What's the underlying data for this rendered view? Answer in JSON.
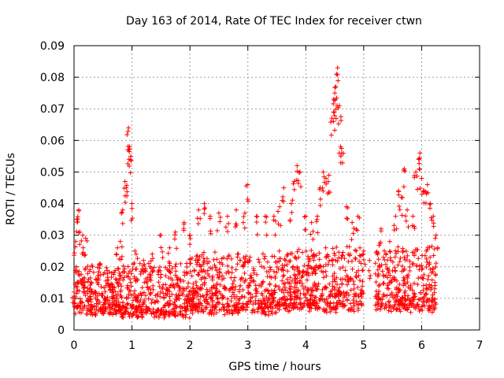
{
  "chart_data": {
    "type": "scatter",
    "title": "Day 163 of 2014, Rate Of TEC Index for receiver ctwn",
    "xlabel": "GPS time / hours",
    "ylabel": "ROTI / TECUs",
    "xlim": [
      0,
      7
    ],
    "ylim": [
      0,
      0.09
    ],
    "xticks": [
      "0",
      "1",
      "2",
      "3",
      "4",
      "5",
      "6",
      "7"
    ],
    "yticks": [
      "0",
      "0.01",
      "0.02",
      "0.03",
      "0.04",
      "0.05",
      "0.06",
      "0.07",
      "0.08",
      "0.09"
    ],
    "grid": true,
    "marker": "plus",
    "color": "#ff0000",
    "series": [
      {
        "name": "ROTI",
        "points": [
          [
            0.0,
            0.012
          ],
          [
            0.03,
            0.028
          ],
          [
            0.05,
            0.035
          ],
          [
            0.08,
            0.038
          ],
          [
            0.1,
            0.031
          ],
          [
            0.15,
            0.03
          ],
          [
            0.2,
            0.029
          ],
          [
            0.25,
            0.016
          ],
          [
            0.3,
            0.012
          ],
          [
            0.45,
            0.021
          ],
          [
            0.55,
            0.014
          ],
          [
            0.65,
            0.018
          ],
          [
            0.75,
            0.026
          ],
          [
            0.8,
            0.028
          ],
          [
            0.84,
            0.038
          ],
          [
            0.88,
            0.047
          ],
          [
            0.9,
            0.045
          ],
          [
            0.93,
            0.057
          ],
          [
            0.94,
            0.064
          ],
          [
            0.96,
            0.058
          ],
          [
            0.98,
            0.055
          ],
          [
            1.0,
            0.04
          ],
          [
            1.05,
            0.025
          ],
          [
            1.2,
            0.022
          ],
          [
            1.35,
            0.024
          ],
          [
            1.5,
            0.03
          ],
          [
            1.65,
            0.026
          ],
          [
            1.75,
            0.031
          ],
          [
            1.9,
            0.034
          ],
          [
            2.0,
            0.03
          ],
          [
            2.15,
            0.038
          ],
          [
            2.25,
            0.04
          ],
          [
            2.35,
            0.036
          ],
          [
            2.5,
            0.037
          ],
          [
            2.65,
            0.036
          ],
          [
            2.8,
            0.038
          ],
          [
            2.95,
            0.037
          ],
          [
            3.0,
            0.046
          ],
          [
            3.15,
            0.036
          ],
          [
            3.3,
            0.036
          ],
          [
            3.45,
            0.036
          ],
          [
            3.55,
            0.039
          ],
          [
            3.62,
            0.045
          ],
          [
            3.75,
            0.04
          ],
          [
            3.8,
            0.047
          ],
          [
            3.85,
            0.052
          ],
          [
            3.9,
            0.05
          ],
          [
            4.0,
            0.036
          ],
          [
            4.1,
            0.034
          ],
          [
            4.2,
            0.036
          ],
          [
            4.25,
            0.045
          ],
          [
            4.3,
            0.05
          ],
          [
            4.35,
            0.048
          ],
          [
            4.4,
            0.049
          ],
          [
            4.45,
            0.067
          ],
          [
            4.48,
            0.069
          ],
          [
            4.5,
            0.075
          ],
          [
            4.52,
            0.077
          ],
          [
            4.54,
            0.071
          ],
          [
            4.55,
            0.083
          ],
          [
            4.58,
            0.071
          ],
          [
            4.6,
            0.058
          ],
          [
            4.62,
            0.056
          ],
          [
            4.7,
            0.039
          ],
          [
            4.8,
            0.034
          ],
          [
            4.9,
            0.036
          ],
          [
            5.0,
            0.025
          ],
          [
            5.1,
            0.022
          ],
          [
            5.3,
            0.032
          ],
          [
            5.45,
            0.028
          ],
          [
            5.55,
            0.036
          ],
          [
            5.6,
            0.044
          ],
          [
            5.65,
            0.042
          ],
          [
            5.7,
            0.051
          ],
          [
            5.75,
            0.038
          ],
          [
            5.85,
            0.036
          ],
          [
            5.9,
            0.05
          ],
          [
            5.95,
            0.054
          ],
          [
            5.97,
            0.056
          ],
          [
            6.0,
            0.048
          ],
          [
            6.05,
            0.044
          ],
          [
            6.1,
            0.046
          ],
          [
            6.15,
            0.04
          ],
          [
            6.2,
            0.036
          ],
          [
            6.25,
            0.03
          ]
        ]
      }
    ],
    "density_bands": [
      {
        "x": [
          0.0,
          0.8
        ],
        "low": 0.006,
        "high": 0.02
      },
      {
        "x": [
          0.8,
          2.0
        ],
        "low": 0.005,
        "high": 0.022
      },
      {
        "x": [
          2.0,
          3.5
        ],
        "low": 0.006,
        "high": 0.024
      },
      {
        "x": [
          3.5,
          5.0
        ],
        "low": 0.007,
        "high": 0.026
      },
      {
        "x": [
          5.2,
          6.25
        ],
        "low": 0.007,
        "high": 0.026
      }
    ]
  }
}
